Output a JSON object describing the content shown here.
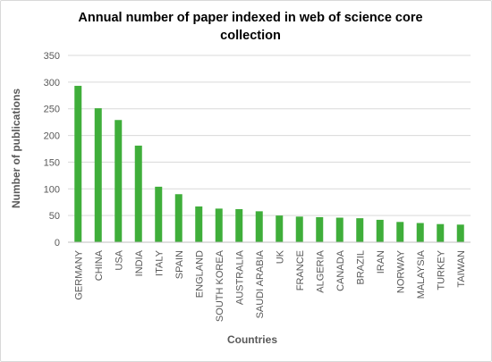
{
  "chart_data": {
    "type": "bar",
    "title": "Annual number of paper indexed in web of science core collection",
    "xlabel": "Countries",
    "ylabel": "Number of publications",
    "ylim": [
      0,
      350
    ],
    "yticks": [
      0,
      50,
      100,
      150,
      200,
      250,
      300,
      350
    ],
    "grid": true,
    "legend": "none",
    "bar_color": "#3fae3a",
    "categories": [
      "GERMANY",
      "CHINA",
      "USA",
      "INDIA",
      "ITALY",
      "SPAIN",
      "ENGLAND",
      "SOUTH KOREA",
      "AUSTRALIA",
      "SAUDI ARABIA",
      "UK",
      "FRANCE",
      "ALGERIA",
      "CANADA",
      "BRAZIL",
      "IRAN",
      "NORWAY",
      "MALAYSIA",
      "TURKEY",
      "TAIWAN"
    ],
    "values": [
      293,
      251,
      229,
      181,
      104,
      90,
      67,
      63,
      62,
      58,
      50,
      48,
      47,
      46,
      45,
      42,
      38,
      36,
      34,
      33
    ]
  }
}
